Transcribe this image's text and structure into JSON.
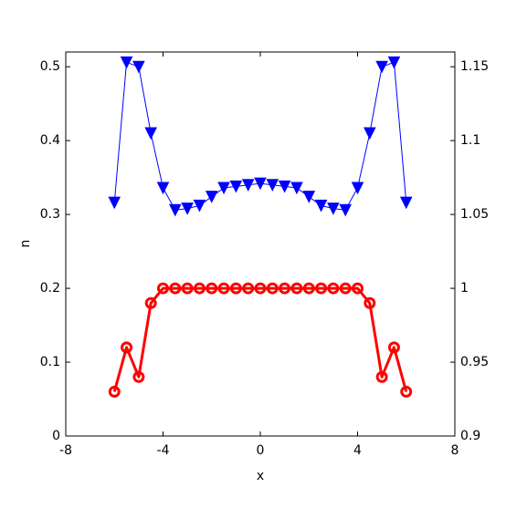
{
  "chart_data": {
    "type": "line",
    "x_label": "x",
    "y_label": "n",
    "x": [
      -6,
      -5.5,
      -5,
      -4.5,
      -4,
      -3.5,
      -3,
      -2.5,
      -2,
      -1.5,
      -1,
      -0.5,
      0,
      0.5,
      1,
      1.5,
      2,
      2.5,
      3,
      3.5,
      4,
      4.5,
      5,
      5.5,
      6
    ],
    "series": [
      {
        "color": "#ff0000",
        "marker": "circle",
        "values": [
          0.06,
          0.12,
          0.08,
          0.18,
          0.2,
          0.2,
          0.2,
          0.2,
          0.2,
          0.2,
          0.2,
          0.2,
          0.2,
          0.2,
          0.2,
          0.2,
          0.2,
          0.2,
          0.2,
          0.2,
          0.2,
          0.18,
          0.08,
          0.12,
          0.06
        ]
      },
      {
        "color": "#0000ff",
        "marker": "triangle-down",
        "axis": "y2",
        "values": [
          1.058,
          1.153,
          1.15,
          1.105,
          1.068,
          1.053,
          1.054,
          1.056,
          1.062,
          1.068,
          1.069,
          1.07,
          1.071,
          1.07,
          1.069,
          1.068,
          1.062,
          1.056,
          1.054,
          1.053,
          1.068,
          1.105,
          1.15,
          1.153,
          1.058
        ]
      }
    ],
    "xlim": [
      -8,
      8
    ],
    "xticks": [
      -8,
      -4,
      0,
      4,
      8
    ],
    "ylim": [
      0,
      0.52
    ],
    "yticks": [
      0,
      0.1,
      0.2,
      0.3,
      0.4,
      0.5
    ],
    "y2lim": [
      0.9,
      1.16
    ],
    "y2ticks": [
      0.9,
      0.95,
      1,
      1.05,
      1.1,
      1.15
    ]
  }
}
